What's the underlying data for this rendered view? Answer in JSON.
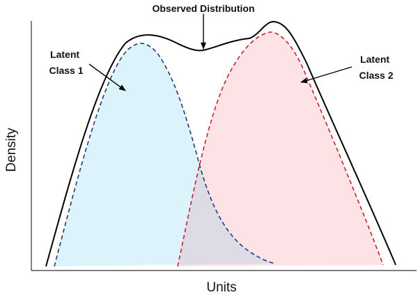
{
  "title": "Observed Distribution",
  "xlabel": "Units",
  "ylabel": "Density",
  "annotations": {
    "class1": [
      "Latent",
      "Class 1"
    ],
    "class2": [
      "Latent",
      "Class 2"
    ]
  },
  "colors": {
    "class1_fill": "#ddf3fc",
    "class1_line": "#1f3a7a",
    "class2_fill": "#fde3e6",
    "class2_line": "#cc1f24",
    "overlap_fill": "#dcdbe6",
    "observed_line": "#000000"
  },
  "chart_data": {
    "type": "area",
    "series": [
      {
        "name": "Observed Distribution",
        "style": "solid",
        "color": "#000000"
      },
      {
        "name": "Latent Class 1",
        "style": "dashed",
        "color": "#1f3a7a"
      },
      {
        "name": "Latent Class 2",
        "style": "dashed",
        "color": "#cc1f24"
      }
    ],
    "grid": false,
    "legend": "none"
  }
}
